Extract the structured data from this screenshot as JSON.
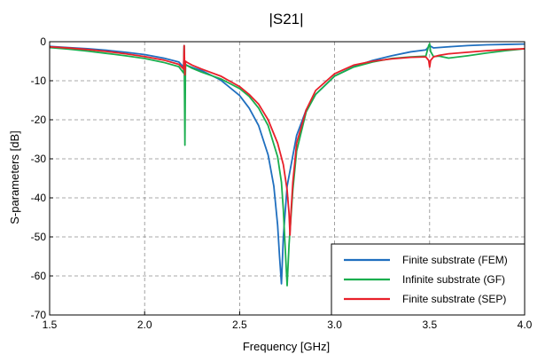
{
  "chart_data": {
    "type": "line",
    "title": "|S21|",
    "xlabel": "Frequency [GHz]",
    "ylabel": "S-parameters [dB]",
    "xlim": [
      1.5,
      4.0
    ],
    "ylim": [
      -70,
      0
    ],
    "xticks": [
      "1.5",
      "2.0",
      "2.5",
      "3.0",
      "3.5",
      "4.0"
    ],
    "yticks": [
      "0",
      "-10",
      "-20",
      "-30",
      "-40",
      "-50",
      "-60",
      "-70"
    ],
    "grid": true,
    "legend_position": "bottom-right",
    "series": [
      {
        "name": "Finite substrate (FEM)",
        "color": "#1f6fbf",
        "x": [
          1.5,
          1.6,
          1.7,
          1.8,
          1.9,
          2.0,
          2.1,
          2.18,
          2.205,
          2.208,
          2.212,
          2.215,
          2.22,
          2.25,
          2.3,
          2.4,
          2.5,
          2.55,
          2.6,
          2.65,
          2.68,
          2.7,
          2.71,
          2.72,
          2.73,
          2.75,
          2.8,
          2.85,
          2.9,
          3.0,
          3.1,
          3.2,
          3.3,
          3.4,
          3.48,
          3.5,
          3.52,
          3.6,
          3.7,
          3.8,
          3.9,
          4.0
        ],
        "y": [
          -1.2,
          -1.5,
          -1.8,
          -2.2,
          -2.7,
          -3.3,
          -4.2,
          -5.2,
          -6.5,
          -1.0,
          -14.0,
          -5.8,
          -6.0,
          -6.6,
          -7.4,
          -9.8,
          -13.8,
          -17.0,
          -21.5,
          -29.0,
          -37.0,
          -47.0,
          -55.0,
          -62.0,
          -50.0,
          -37.0,
          -24.0,
          -17.5,
          -13.5,
          -8.8,
          -6.4,
          -4.8,
          -3.6,
          -2.6,
          -2.1,
          -1.0,
          -1.6,
          -1.3,
          -1.0,
          -0.8,
          -0.7,
          -0.6
        ]
      },
      {
        "name": "Infinite substrate (GF)",
        "color": "#1aae4e",
        "x": [
          1.5,
          1.6,
          1.7,
          1.8,
          1.9,
          2.0,
          2.1,
          2.18,
          2.205,
          2.208,
          2.212,
          2.215,
          2.22,
          2.25,
          2.3,
          2.4,
          2.5,
          2.55,
          2.6,
          2.65,
          2.7,
          2.72,
          2.73,
          2.74,
          2.75,
          2.76,
          2.78,
          2.8,
          2.85,
          2.9,
          3.0,
          3.1,
          3.2,
          3.3,
          3.4,
          3.48,
          3.495,
          3.5,
          3.505,
          3.52,
          3.55,
          3.6,
          3.7,
          3.8,
          3.9,
          4.0
        ],
        "y": [
          -1.5,
          -1.9,
          -2.4,
          -3.0,
          -3.6,
          -4.3,
          -5.3,
          -6.4,
          -8.0,
          -1.0,
          -26.5,
          -5.8,
          -6.0,
          -6.8,
          -7.8,
          -9.5,
          -12.0,
          -14.0,
          -17.0,
          -21.5,
          -29.5,
          -36.0,
          -43.0,
          -53.0,
          -62.5,
          -52.0,
          -38.0,
          -28.0,
          -18.0,
          -13.5,
          -8.8,
          -6.5,
          -5.2,
          -4.3,
          -3.9,
          -3.7,
          -1.0,
          -0.5,
          -2.5,
          -3.8,
          -3.7,
          -4.2,
          -3.6,
          -2.9,
          -2.3,
          -1.8
        ]
      },
      {
        "name": "Finite substrate (SEP)",
        "color": "#e8202a",
        "x": [
          1.5,
          1.6,
          1.7,
          1.8,
          1.9,
          2.0,
          2.1,
          2.18,
          2.205,
          2.208,
          2.212,
          2.215,
          2.22,
          2.25,
          2.3,
          2.4,
          2.5,
          2.55,
          2.6,
          2.65,
          2.7,
          2.73,
          2.75,
          2.76,
          2.765,
          2.77,
          2.78,
          2.8,
          2.85,
          2.9,
          3.0,
          3.1,
          3.2,
          3.3,
          3.4,
          3.48,
          3.495,
          3.5,
          3.505,
          3.52,
          3.55,
          3.6,
          3.7,
          3.8,
          3.9,
          4.0
        ],
        "y": [
          -1.3,
          -1.6,
          -2.0,
          -2.5,
          -3.1,
          -3.8,
          -4.7,
          -5.8,
          -7.0,
          -1.0,
          -8.5,
          -5.0,
          -5.2,
          -6.0,
          -7.0,
          -8.8,
          -11.5,
          -13.5,
          -16.0,
          -20.0,
          -26.0,
          -31.5,
          -38.0,
          -44.0,
          -49.5,
          -44.0,
          -36.0,
          -26.0,
          -17.5,
          -12.5,
          -8.2,
          -6.0,
          -5.0,
          -4.4,
          -4.0,
          -3.9,
          -4.8,
          -6.5,
          -4.8,
          -3.9,
          -3.5,
          -3.1,
          -2.7,
          -2.3,
          -2.0,
          -1.8
        ]
      }
    ]
  }
}
